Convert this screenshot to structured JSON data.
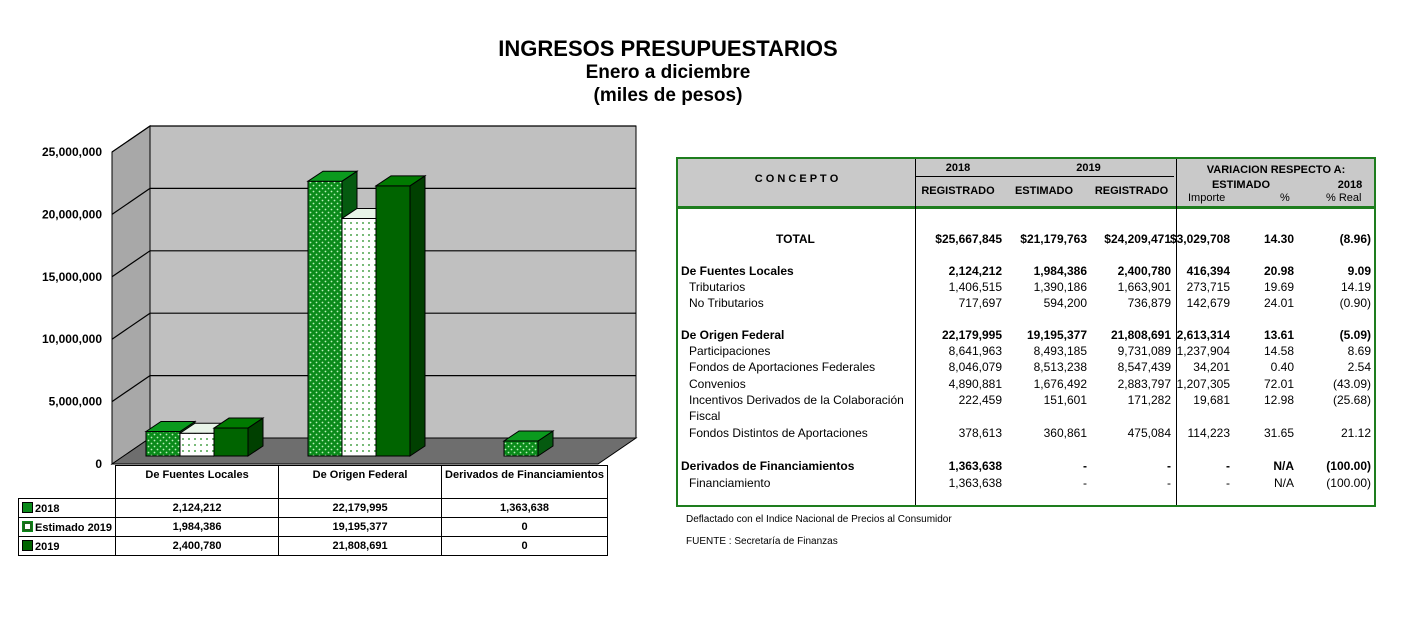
{
  "title": {
    "line1": "INGRESOS PRESUPUESTARIOS",
    "line2": "Enero a diciembre",
    "line3": "(miles de pesos)"
  },
  "chart_data": {
    "type": "bar",
    "categories": [
      "De Fuentes Locales",
      "De Origen Federal",
      "Derivados de Financiamientos"
    ],
    "series": [
      {
        "name": "2018",
        "values": [
          2124212,
          22179995,
          1363638
        ]
      },
      {
        "name": "Estimado 2019",
        "values": [
          1984386,
          19195377,
          0
        ]
      },
      {
        "name": "2019",
        "values": [
          2400780,
          21808691,
          0
        ]
      }
    ],
    "ylim": [
      0,
      25000000
    ],
    "yticks": [
      "0",
      "5,000,000",
      "10,000,000",
      "15,000,000",
      "20,000,000",
      "25,000,000"
    ],
    "grid": true,
    "legend": "data-table-below",
    "colors": {
      "2018": "#0a8a1a",
      "Estimado 2019": "#ffffff",
      "2019": "#006400",
      "walls": "#c0c0c0",
      "floor": "#6e6e6e"
    }
  },
  "chart_table": {
    "header": [
      "De Fuentes Locales",
      "De Origen Federal",
      "Derivados de Financiamientos"
    ],
    "rows": [
      {
        "label": "2018",
        "values": [
          "2,124,212",
          "22,179,995",
          "1,363,638"
        ]
      },
      {
        "label": "Estimado 2019",
        "values": [
          "1,984,386",
          "19,195,377",
          "0"
        ]
      },
      {
        "label": "2019",
        "values": [
          "2,400,780",
          "21,808,691",
          "0"
        ]
      }
    ]
  },
  "table": {
    "header": {
      "concepto": "C O N C E P T O",
      "y2018": "2018",
      "y2019": "2019",
      "variacion": "VARIACION RESPECTO A:",
      "registrado_2018": "REGISTRADO",
      "estimado": "ESTIMADO",
      "registrado_2019": "REGISTRADO",
      "var_estimado": "ESTIMADO",
      "var_2018": "2018",
      "importe": "Importe",
      "pct": "%",
      "pct_real": "% Real"
    },
    "rows": [
      {
        "concept": "TOTAL",
        "v": [
          "$25,667,845",
          "$21,179,763",
          "$24,209,471",
          "$3,029,708",
          "14.30",
          "(8.96)"
        ]
      },
      {
        "concept": "De Fuentes Locales",
        "v": [
          "2,124,212",
          "1,984,386",
          "2,400,780",
          "416,394",
          "20.98",
          "9.09"
        ]
      },
      {
        "concept": "Tributarios",
        "v": [
          "1,406,515",
          "1,390,186",
          "1,663,901",
          "273,715",
          "19.69",
          "14.19"
        ]
      },
      {
        "concept": "No Tributarios",
        "v": [
          "717,697",
          "594,200",
          "736,879",
          "142,679",
          "24.01",
          "(0.90)"
        ]
      },
      {
        "concept": "De Origen Federal",
        "v": [
          "22,179,995",
          "19,195,377",
          "21,808,691",
          "2,613,314",
          "13.61",
          "(5.09)"
        ]
      },
      {
        "concept": "Participaciones",
        "v": [
          "8,641,963",
          "8,493,185",
          "9,731,089",
          "1,237,904",
          "14.58",
          "8.69"
        ]
      },
      {
        "concept": "Fondos de Aportaciones Federales",
        "v": [
          "8,046,079",
          "8,513,238",
          "8,547,439",
          "34,201",
          "0.40",
          "2.54"
        ]
      },
      {
        "concept": "Convenios",
        "v": [
          "4,890,881",
          "1,676,492",
          "2,883,797",
          "1,207,305",
          "72.01",
          "(43.09)"
        ]
      },
      {
        "concept": "Incentivos Derivados de la Colaboración",
        "concept2": "Fiscal",
        "v": [
          "222,459",
          "151,601",
          "171,282",
          "19,681",
          "12.98",
          "(25.68)"
        ]
      },
      {
        "concept": "Fondos Distintos de Aportaciones",
        "v": [
          "378,613",
          "360,861",
          "475,084",
          "114,223",
          "31.65",
          "21.12"
        ]
      },
      {
        "concept": "Derivados de Financiamientos",
        "v": [
          "1,363,638",
          "-",
          "-",
          "-",
          "N/A",
          "(100.00)"
        ]
      },
      {
        "concept": "Financiamiento",
        "v": [
          "1,363,638",
          "-",
          "-",
          "-",
          "N/A",
          "(100.00)"
        ]
      }
    ]
  },
  "notes": {
    "deflactado": "Deflactado con el Indice Nacional de Precios al Consumidor",
    "fuente": "FUENTE : Secretaría de Finanzas"
  }
}
